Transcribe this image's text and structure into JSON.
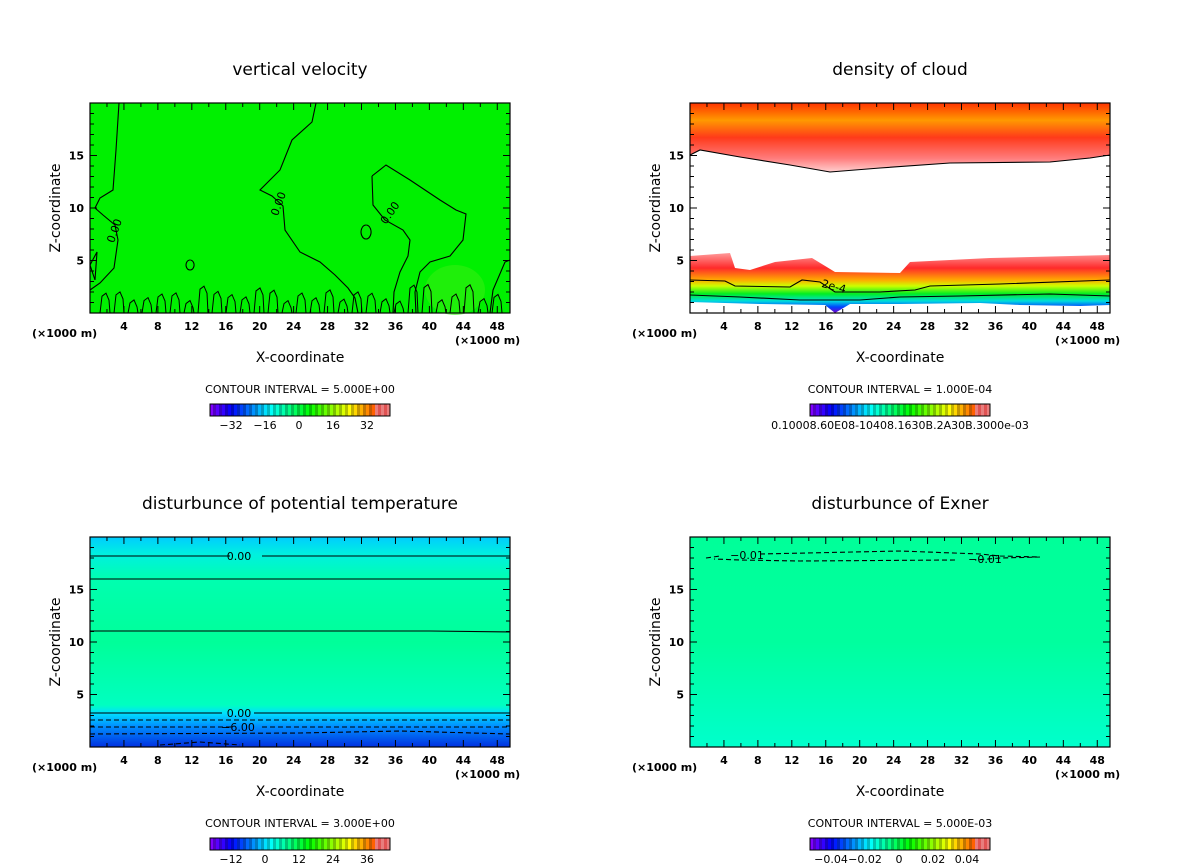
{
  "chart_data": [
    {
      "type": "heatmap",
      "title": "vertical velocity",
      "xlabel": "X-coordinate",
      "ylabel": "Z-coordinate",
      "x_unit_left": "(×1000 m)",
      "x_unit_right": "(×1000 m)",
      "xticks": [
        "4",
        "8",
        "12",
        "16",
        "20",
        "24",
        "28",
        "32",
        "36",
        "40",
        "44",
        "48"
      ],
      "yticks": [
        "5",
        "10",
        "15"
      ],
      "xlim": [
        0,
        49.5
      ],
      "ylim": [
        0,
        20
      ],
      "contour_interval": "CONTOUR INTERVAL = 5.000E+00",
      "colorbar_labels": [
        "−32",
        "−16",
        "0",
        "16",
        "32"
      ],
      "colorbar_range": [
        -40,
        40
      ],
      "contour_labels": [
        "0.00",
        "0.00",
        "0.00"
      ],
      "background_color": "#00f000"
    },
    {
      "type": "heatmap",
      "title": "density of cloud",
      "xlabel": "X-coordinate",
      "ylabel": "Z-coordinate",
      "x_unit_left": "(×1000 m)",
      "x_unit_right": "(×1000 m)",
      "xticks": [
        "4",
        "8",
        "12",
        "16",
        "20",
        "24",
        "28",
        "32",
        "36",
        "40",
        "44",
        "48"
      ],
      "yticks": [
        "5",
        "10",
        "15"
      ],
      "xlim": [
        0,
        49.5
      ],
      "ylim": [
        0,
        20
      ],
      "contour_interval": "CONTOUR INTERVAL = 1.000E-04",
      "colorbar_labels": [
        "0.10008.60E08-10408.1630B.2A30B.3000e-03"
      ],
      "contour_labels": [
        "2e-4"
      ]
    },
    {
      "type": "heatmap",
      "title": "disturbunce of potential temperature",
      "xlabel": "X-coordinate",
      "ylabel": "Z-coordinate",
      "x_unit_left": "(×1000 m)",
      "x_unit_right": "(×1000 m)",
      "xticks": [
        "4",
        "8",
        "12",
        "16",
        "20",
        "24",
        "28",
        "32",
        "36",
        "40",
        "44",
        "48"
      ],
      "yticks": [
        "5",
        "10",
        "15"
      ],
      "xlim": [
        0,
        49.5
      ],
      "ylim": [
        0,
        20
      ],
      "contour_interval": "CONTOUR INTERVAL = 3.000E+00",
      "colorbar_labels": [
        "−12",
        "0",
        "12",
        "24",
        "36"
      ],
      "contour_labels": [
        "0.00",
        "0.00",
        "−6.00"
      ]
    },
    {
      "type": "heatmap",
      "title": "disturbunce of Exner",
      "xlabel": "X-coordinate",
      "ylabel": "Z-coordinate",
      "x_unit_left": "(×1000 m)",
      "x_unit_right": "(×1000 m)",
      "xticks": [
        "4",
        "8",
        "12",
        "16",
        "20",
        "24",
        "28",
        "32",
        "36",
        "40",
        "44",
        "48"
      ],
      "yticks": [
        "5",
        "10",
        "15"
      ],
      "xlim": [
        0,
        49.5
      ],
      "ylim": [
        0,
        20
      ],
      "contour_interval": "CONTOUR INTERVAL = 5.000E-03",
      "colorbar_labels": [
        "−0.04",
        "−0.02",
        "0",
        "0.02",
        "0.04"
      ],
      "contour_labels": [
        "−0.01",
        "−0.01"
      ]
    }
  ]
}
